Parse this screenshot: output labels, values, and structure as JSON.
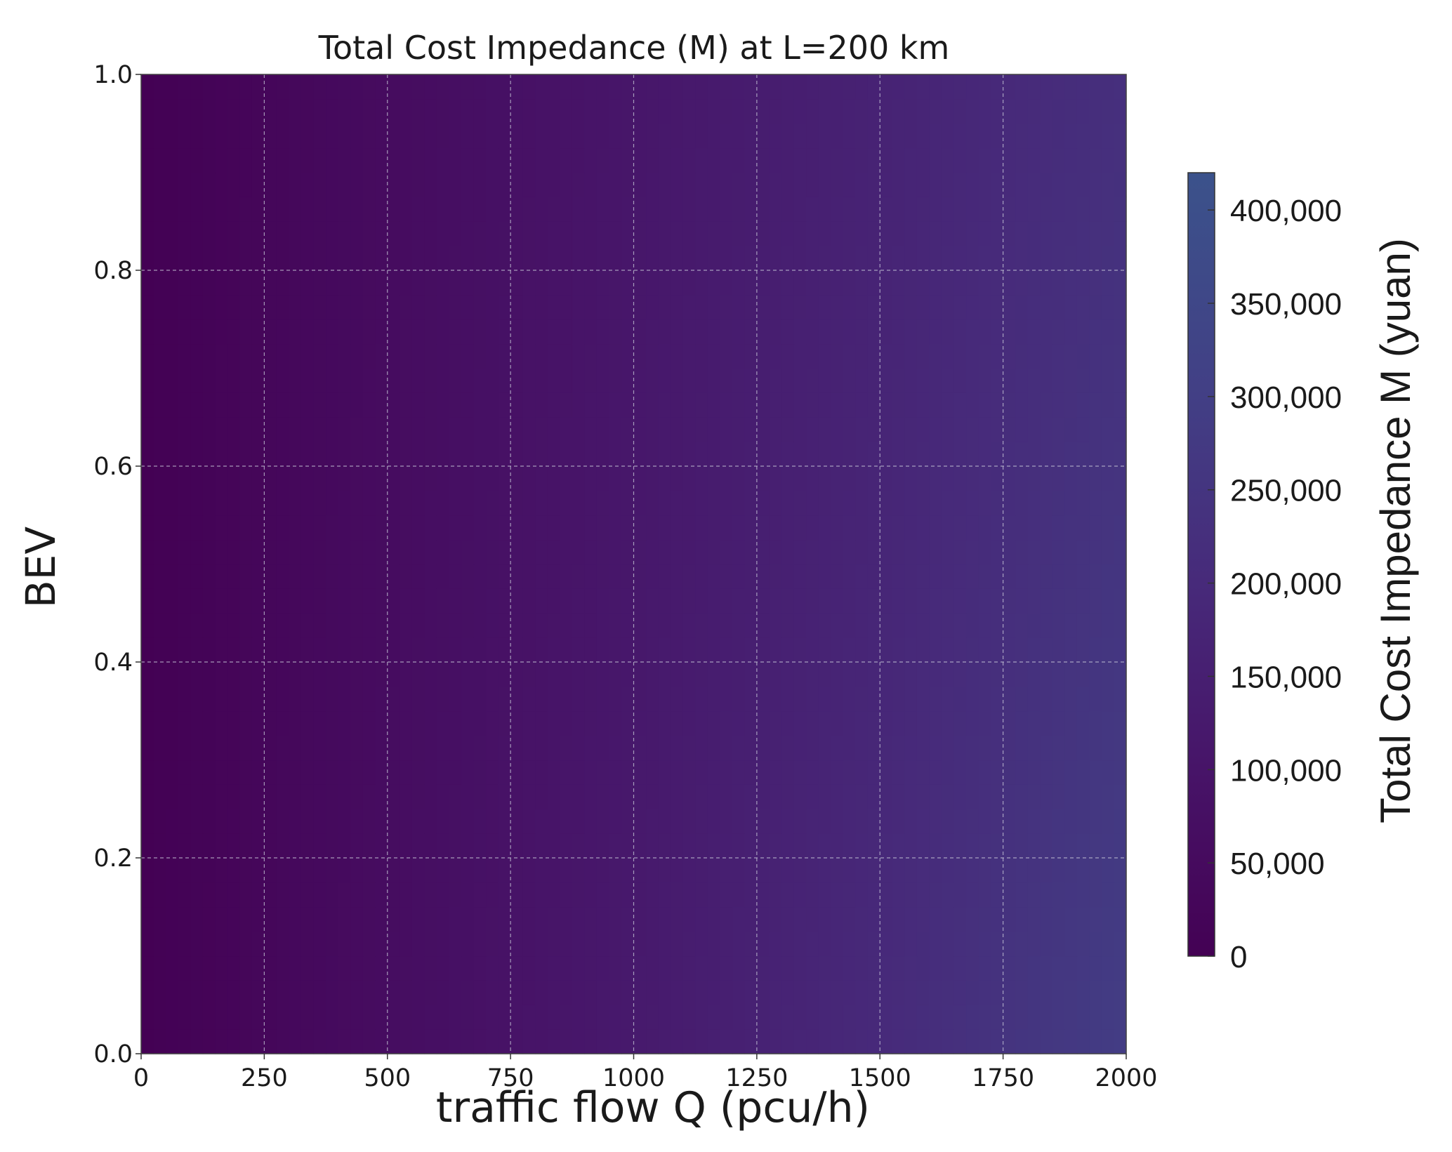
{
  "chart_data": {
    "type": "heatmap",
    "title": "Total Cost Impedance (M) at L=200 km",
    "xlabel": "traffic flow Q (pcu/h)",
    "ylabel": "BEV",
    "xlim": [
      0,
      2000
    ],
    "ylim": [
      0.0,
      1.0
    ],
    "x_ticks": [
      0,
      250,
      500,
      750,
      1000,
      1250,
      1500,
      1750,
      2000
    ],
    "x_tick_labels": [
      "0",
      "250",
      "500",
      "750",
      "1000",
      "1250",
      "1500",
      "1750",
      "2000"
    ],
    "y_ticks": [
      0.0,
      0.2,
      0.4,
      0.6,
      0.8,
      1.0
    ],
    "y_tick_labels": [
      "0.0",
      "0.2",
      "0.4",
      "0.6",
      "0.8",
      "1.0"
    ],
    "grid": true,
    "colorbar": {
      "label": "Total Cost Impedance M (yuan)",
      "range": [
        0,
        420000
      ],
      "ticks": [
        0,
        50000,
        100000,
        150000,
        200000,
        250000,
        300000,
        350000,
        400000
      ],
      "tick_labels": [
        "0",
        "50,000",
        "100,000",
        "150,000",
        "200,000",
        "250,000",
        "300,000",
        "350,000",
        "400,000"
      ],
      "colormap_stops": [
        {
          "value": 0,
          "color": "#440154"
        },
        {
          "value": 100000,
          "color": "#471468"
        },
        {
          "value": 200000,
          "color": "#472a7a"
        },
        {
          "value": 300000,
          "color": "#423f85"
        },
        {
          "value": 420000,
          "color": "#3b528b"
        }
      ]
    },
    "approx_values": {
      "x": [
        0,
        500,
        1000,
        1500,
        2000
      ],
      "bev": [
        0.0,
        0.5,
        1.0
      ],
      "M": [
        [
          0,
          62000,
          125000,
          200000,
          290000
        ],
        [
          0,
          58000,
          115000,
          180000,
          255000
        ],
        [
          0,
          55000,
          108000,
          165000,
          225000
        ]
      ]
    }
  }
}
